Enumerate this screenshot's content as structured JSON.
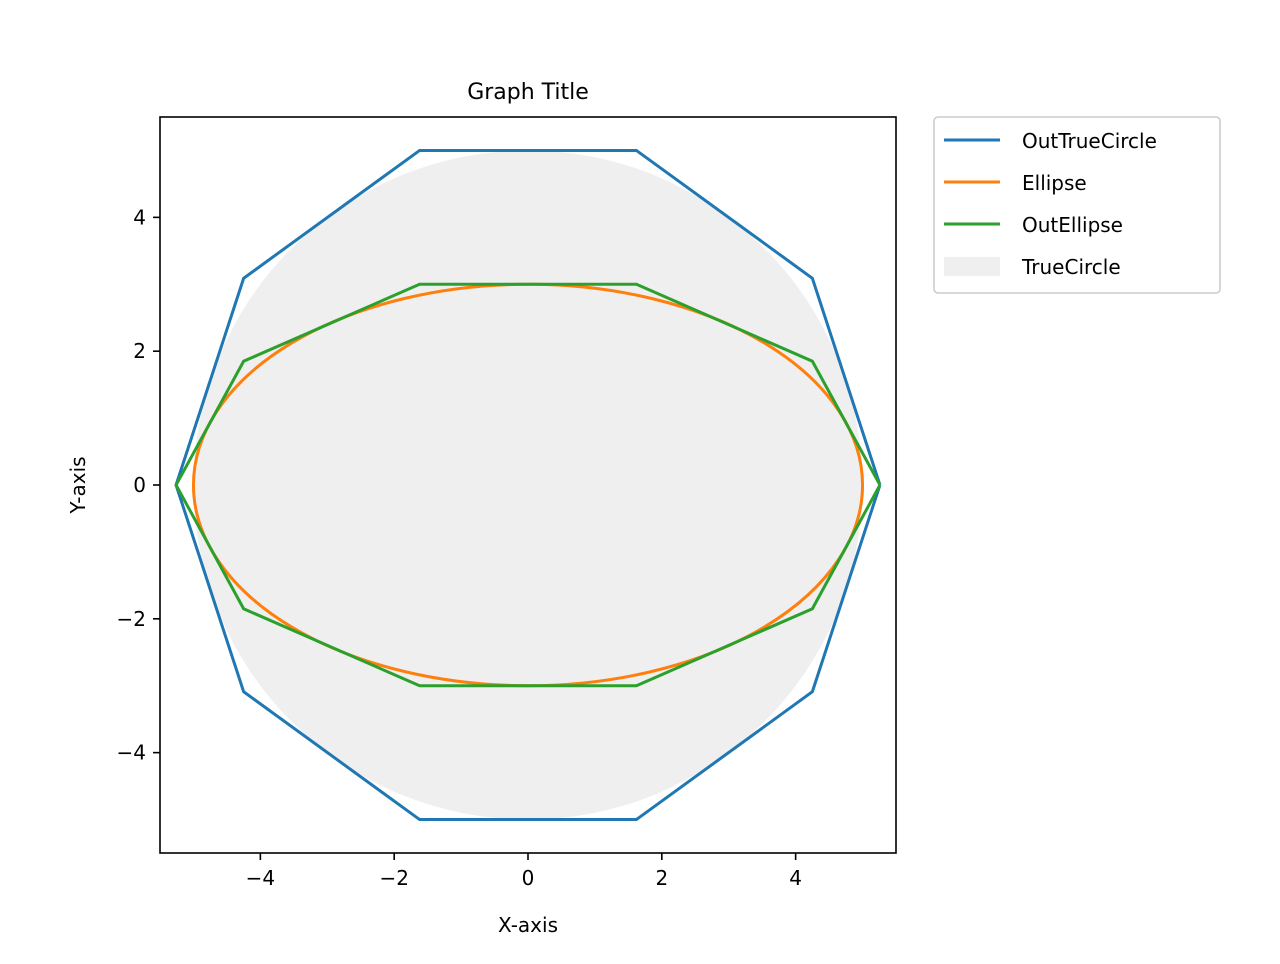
{
  "chart_data": {
    "type": "line",
    "title": "Graph Title",
    "xlabel": "X-axis",
    "ylabel": "Y-axis",
    "xlim": [
      -5.5,
      5.5
    ],
    "ylim": [
      -5.5,
      5.5
    ],
    "aspect": "equal",
    "grid": false,
    "legend_position": "outside-top-right",
    "x_ticks": [
      -4,
      -2,
      0,
      2,
      4
    ],
    "x_tick_labels": [
      "−4",
      "−2",
      "0",
      "2",
      "4"
    ],
    "y_ticks": [
      -4,
      -2,
      0,
      2,
      4
    ],
    "y_tick_labels": [
      "−4",
      "−2",
      "0",
      "2",
      "4"
    ],
    "series": [
      {
        "name": "OutTrueCircle",
        "kind": "line",
        "color": "#1f77b4",
        "points": [
          [
            5.26,
            0
          ],
          [
            4.25,
            3.09
          ],
          [
            1.62,
            5.0
          ],
          [
            -1.62,
            5.0
          ],
          [
            -4.25,
            3.09
          ],
          [
            -5.26,
            0
          ],
          [
            -4.25,
            -3.09
          ],
          [
            -1.62,
            -5.0
          ],
          [
            1.62,
            -5.0
          ],
          [
            4.25,
            -3.09
          ],
          [
            5.26,
            0
          ]
        ]
      },
      {
        "name": "Ellipse",
        "kind": "ellipse",
        "color": "#ff7f0e",
        "center": [
          0,
          0
        ],
        "semi_x": 5.0,
        "semi_y": 3.0
      },
      {
        "name": "OutEllipse",
        "kind": "line",
        "color": "#2ca02c",
        "points": [
          [
            5.26,
            0
          ],
          [
            4.25,
            1.85
          ],
          [
            1.62,
            3.0
          ],
          [
            -1.62,
            3.0
          ],
          [
            -4.25,
            1.85
          ],
          [
            -5.26,
            0
          ],
          [
            -4.25,
            -1.85
          ],
          [
            -1.62,
            -3.0
          ],
          [
            1.62,
            -3.0
          ],
          [
            4.25,
            -1.85
          ],
          [
            5.26,
            0
          ]
        ]
      },
      {
        "name": "TrueCircle",
        "kind": "filled-circle",
        "color": "#efefef",
        "center": [
          0,
          0
        ],
        "radius": 5.0
      }
    ]
  }
}
